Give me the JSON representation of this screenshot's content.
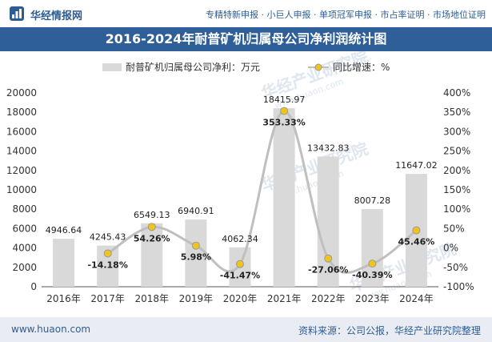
{
  "header": {
    "brand": "华经情报网",
    "tags": "专精特新申报 · 小巨人申报 · 单项冠军申报 · 市占率证明 · 市场地位证明"
  },
  "footer": {
    "url": "www.huaon.com",
    "source": "资料来源：公司公报，华经产业研究院整理"
  },
  "watermark": {
    "text": "华经产业研究院",
    "url": "www.huaon.com"
  },
  "colors": {
    "bar": "#d9d9d9",
    "line": "#bfbfbf",
    "marker": "#f0c419",
    "title_bg": "#2f5f99",
    "brand": "#2d5c94"
  },
  "chart_data": {
    "type": "bar",
    "title": "2016-2024年耐普矿机归属母公司净利润统计图",
    "categories": [
      "2016年",
      "2017年",
      "2018年",
      "2019年",
      "2020年",
      "2021年",
      "2022年",
      "2023年",
      "2024年"
    ],
    "series": [
      {
        "name": "耐普矿机归属母公司净利：万元",
        "type": "bar",
        "axis": "left",
        "values": [
          4946.64,
          4245.43,
          6549.13,
          6940.91,
          4062.34,
          18415.97,
          13432.83,
          8007.28,
          11647.02
        ],
        "labels": [
          "4946.64",
          "4245.43",
          "6549.13",
          "6940.91",
          "4062.34",
          "18415.97",
          "13432.83",
          "8007.28",
          "11647.02"
        ]
      },
      {
        "name": "同比增速：%",
        "type": "line",
        "axis": "right",
        "values": [
          null,
          -14.18,
          54.26,
          5.98,
          -41.47,
          353.33,
          -27.06,
          -40.39,
          45.46
        ],
        "labels": [
          "",
          "-14.18%",
          "54.26%",
          "5.98%",
          "-41.47%",
          "353.33%",
          "-27.06%",
          "-40.39%",
          "45.46%"
        ]
      }
    ],
    "y_left": {
      "min": 0,
      "max": 20000,
      "ticks": [
        "0",
        "2000",
        "4000",
        "6000",
        "8000",
        "10000",
        "12000",
        "14000",
        "16000",
        "18000",
        "20000"
      ]
    },
    "y_right": {
      "min": -100,
      "max": 400,
      "ticks": [
        "-100%",
        "-50%",
        "0%",
        "50%",
        "100%",
        "150%",
        "200%",
        "250%",
        "300%",
        "350%",
        "400%"
      ]
    },
    "legend_position": "top",
    "grid": false
  }
}
